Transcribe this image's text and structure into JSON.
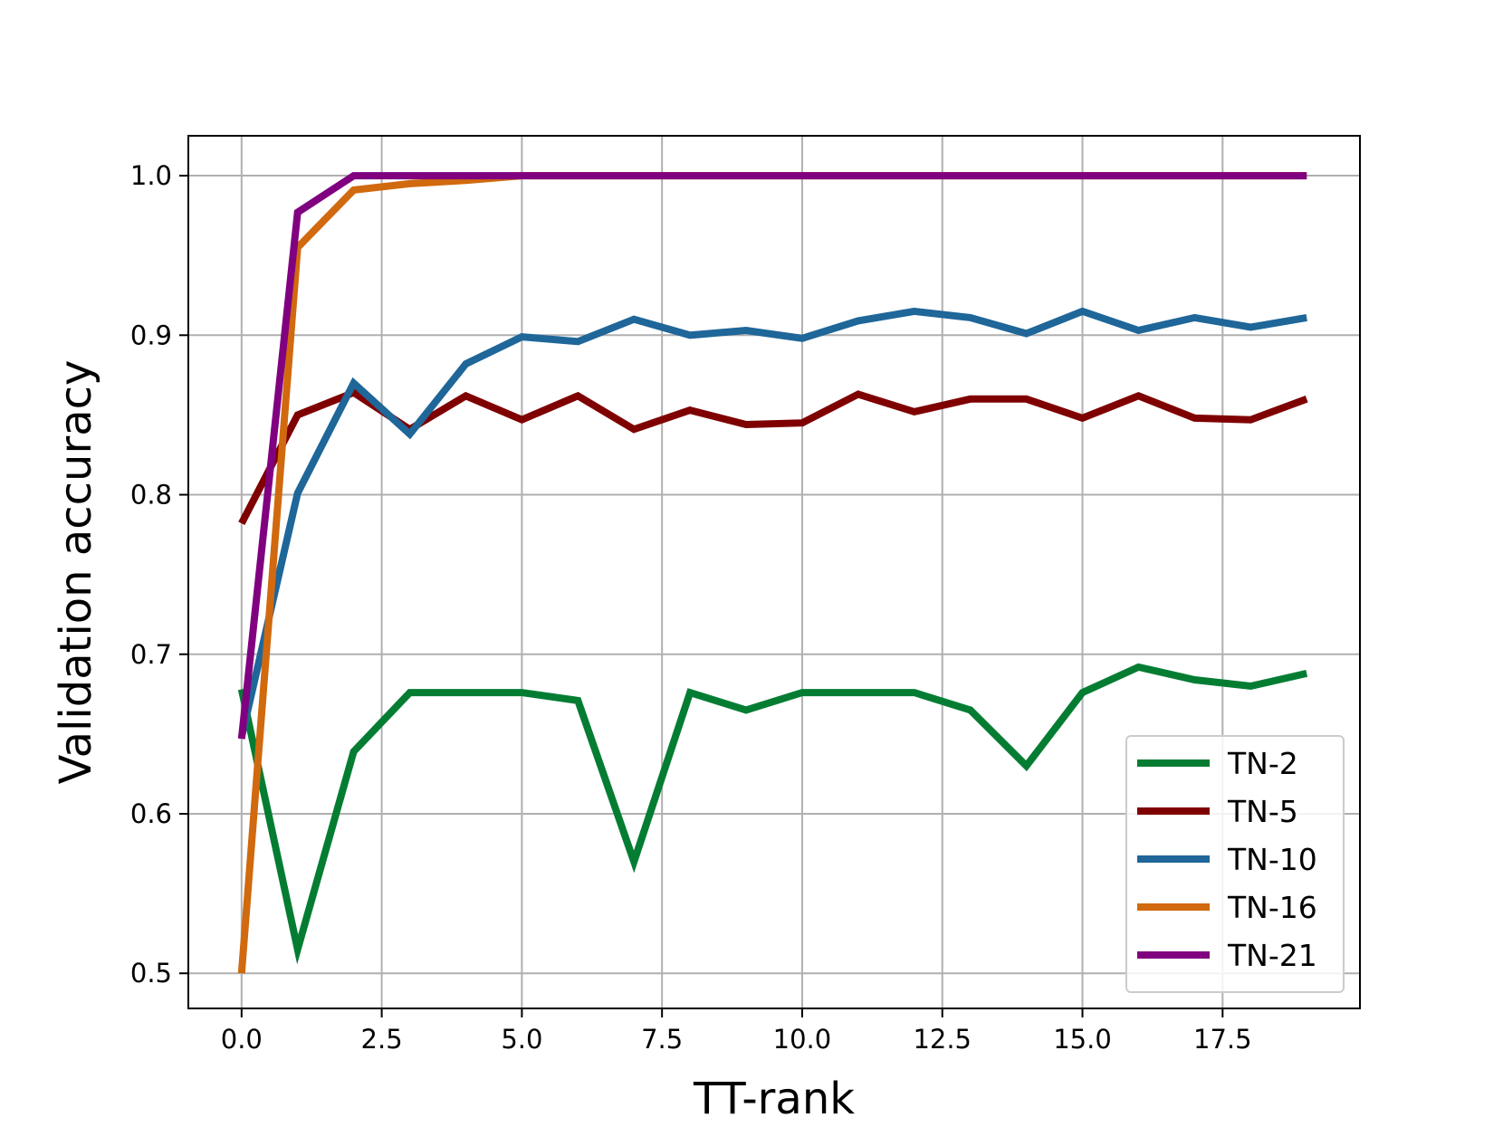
{
  "chart_data": {
    "type": "line",
    "title": "",
    "xlabel": "TT-rank",
    "ylabel": "Validation accuracy",
    "xlim": [
      -0.95,
      19.95
    ],
    "ylim": [
      0.478,
      1.025
    ],
    "xticks": [
      0.0,
      2.5,
      5.0,
      7.5,
      10.0,
      12.5,
      15.0,
      17.5
    ],
    "xtick_labels": [
      "0.0",
      "2.5",
      "5.0",
      "7.5",
      "10.0",
      "12.5",
      "15.0",
      "17.5"
    ],
    "yticks": [
      0.5,
      0.6,
      0.7,
      0.8,
      0.9,
      1.0
    ],
    "ytick_labels": [
      "0.5",
      "0.6",
      "0.7",
      "0.8",
      "0.9",
      "1.0"
    ],
    "grid": true,
    "legend_position": "lower right",
    "x": [
      0,
      1,
      2,
      3,
      4,
      5,
      6,
      7,
      8,
      9,
      10,
      11,
      12,
      13,
      14,
      15,
      16,
      17,
      18,
      19
    ],
    "series": [
      {
        "name": "TN-2",
        "color": "#047D33",
        "values": [
          0.678,
          0.515,
          0.639,
          0.676,
          0.676,
          0.676,
          0.671,
          0.57,
          0.676,
          0.665,
          0.676,
          0.676,
          0.676,
          0.665,
          0.63,
          0.676,
          0.692,
          0.684,
          0.68,
          0.688
        ]
      },
      {
        "name": "TN-5",
        "color": "#7F0000",
        "values": [
          0.782,
          0.85,
          0.864,
          0.841,
          0.862,
          0.847,
          0.862,
          0.841,
          0.853,
          0.844,
          0.845,
          0.863,
          0.852,
          0.86,
          0.86,
          0.848,
          0.862,
          0.848,
          0.847,
          0.86
        ]
      },
      {
        "name": "TN-10",
        "color": "#1F6699",
        "values": [
          0.648,
          0.801,
          0.87,
          0.838,
          0.882,
          0.899,
          0.896,
          0.91,
          0.9,
          0.903,
          0.898,
          0.909,
          0.915,
          0.911,
          0.901,
          0.915,
          0.903,
          0.911,
          0.905,
          0.911
        ]
      },
      {
        "name": "TN-16",
        "color": "#D1690E",
        "values": [
          0.5,
          0.955,
          0.991,
          0.995,
          0.997,
          1.0,
          1.0,
          1.0,
          1.0,
          1.0,
          1.0,
          1.0,
          1.0,
          1.0,
          1.0,
          1.0,
          1.0,
          1.0,
          1.0,
          1.0
        ]
      },
      {
        "name": "TN-21",
        "color": "#800080",
        "values": [
          0.647,
          0.977,
          1.0,
          1.0,
          1.0,
          1.0,
          1.0,
          1.0,
          1.0,
          1.0,
          1.0,
          1.0,
          1.0,
          1.0,
          1.0,
          1.0,
          1.0,
          1.0,
          1.0,
          1.0
        ]
      }
    ]
  }
}
